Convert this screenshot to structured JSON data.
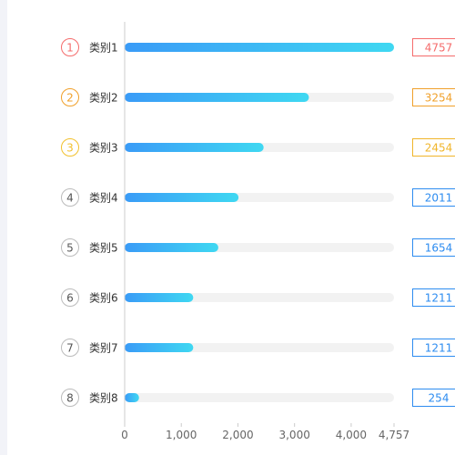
{
  "chart_data": {
    "type": "bar",
    "orientation": "horizontal",
    "categories": [
      "类别1",
      "类别2",
      "类别3",
      "类别4",
      "类别5",
      "类别6",
      "类别7",
      "类别8"
    ],
    "ranks": [
      "1",
      "2",
      "3",
      "4",
      "5",
      "6",
      "7",
      "8"
    ],
    "values": [
      4757,
      3254,
      2454,
      2011,
      1654,
      1211,
      1211,
      254
    ],
    "value_labels": [
      "4757",
      "3254",
      "2454",
      "2011",
      "1654",
      "1211",
      "1211",
      "254"
    ],
    "xlim": [
      0,
      4757
    ],
    "x_ticks": [
      0,
      1000,
      2000,
      3000,
      4000,
      4757
    ],
    "x_tick_labels": [
      "0",
      "1,000",
      "2,000",
      "3,000",
      "4,000",
      "4,757"
    ],
    "title": "",
    "xlabel": "",
    "ylabel": "",
    "grid": false,
    "bar_gradient": [
      "#3a9bf7",
      "#3fd8f2"
    ],
    "bar_track_color": "#f2f2f2",
    "rank_colors": [
      "#f56c6c",
      "#f0a02a",
      "#f2c12e",
      "#555555",
      "#555555",
      "#555555",
      "#555555",
      "#555555"
    ],
    "value_box_colors": [
      "#f56c6c",
      "#f0a02a",
      "#f0b52a",
      "#2d8cf0",
      "#2d8cf0",
      "#2d8cf0",
      "#2d8cf0",
      "#2d8cf0"
    ]
  }
}
